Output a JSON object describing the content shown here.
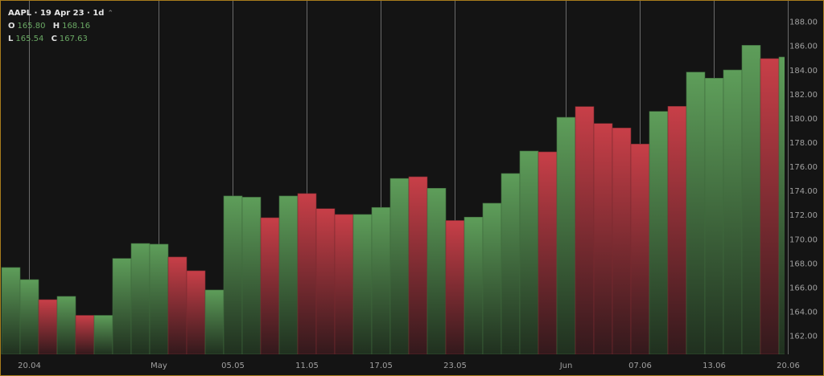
{
  "legend": {
    "title": "AAPL · 19 Apr 23 · 1d",
    "collapse_icon": "chevron-up-icon",
    "o_label": "O",
    "o_value": "165.80",
    "h_label": "H",
    "h_value": "168.16",
    "l_label": "L",
    "l_value": "165.54",
    "c_label": "C",
    "c_value": "167.63"
  },
  "colors": {
    "up": "#5e9e5a",
    "down": "#c83f48",
    "border": "#a87c1c",
    "background": "#141414",
    "grid": "#6a6a6a",
    "axis_text": "#a0a0a0"
  },
  "chart_data": {
    "type": "bar",
    "title": "AAPL · 19 Apr 23 · 1d",
    "xlabel": "",
    "ylabel": "",
    "ylim": [
      161,
      189
    ],
    "yticks": [
      "162.00",
      "164.00",
      "166.00",
      "168.00",
      "170.00",
      "172.00",
      "174.00",
      "176.00",
      "178.00",
      "180.00",
      "182.00",
      "184.00",
      "186.00",
      "188.00"
    ],
    "xticks": [
      {
        "label": "20.04",
        "date": "2023-04-20"
      },
      {
        "label": "May",
        "date": "2023-05-01"
      },
      {
        "label": "05.05",
        "date": "2023-05-05"
      },
      {
        "label": "11.05",
        "date": "2023-05-11"
      },
      {
        "label": "17.05",
        "date": "2023-05-17"
      },
      {
        "label": "23.05",
        "date": "2023-05-23"
      },
      {
        "label": "Jun",
        "date": "2023-06-01"
      },
      {
        "label": "07.06",
        "date": "2023-06-07"
      },
      {
        "label": "13.06",
        "date": "2023-06-13"
      },
      {
        "label": "20.06",
        "date": "2023-06-20"
      }
    ],
    "grid": "vertical lines at x ticks",
    "bars": [
      {
        "date": "2023-04-19",
        "close": 167.63,
        "dir": "up"
      },
      {
        "date": "2023-04-20",
        "close": 166.63,
        "dir": "up"
      },
      {
        "date": "2023-04-21",
        "close": 164.97,
        "dir": "down"
      },
      {
        "date": "2023-04-24",
        "close": 165.24,
        "dir": "up"
      },
      {
        "date": "2023-04-25",
        "close": 163.67,
        "dir": "down"
      },
      {
        "date": "2023-04-26",
        "close": 163.67,
        "dir": "up"
      },
      {
        "date": "2023-04-27",
        "close": 168.38,
        "dir": "up"
      },
      {
        "date": "2023-04-28",
        "close": 169.62,
        "dir": "up"
      },
      {
        "date": "2023-05-01",
        "close": 169.56,
        "dir": "up"
      },
      {
        "date": "2023-05-02",
        "close": 168.5,
        "dir": "down"
      },
      {
        "date": "2023-05-03",
        "close": 167.36,
        "dir": "down"
      },
      {
        "date": "2023-05-04",
        "close": 165.77,
        "dir": "up"
      },
      {
        "date": "2023-05-05",
        "close": 173.55,
        "dir": "up"
      },
      {
        "date": "2023-05-08",
        "close": 173.45,
        "dir": "up"
      },
      {
        "date": "2023-05-09",
        "close": 171.75,
        "dir": "down"
      },
      {
        "date": "2023-05-10",
        "close": 173.55,
        "dir": "up"
      },
      {
        "date": "2023-05-11",
        "close": 173.75,
        "dir": "down"
      },
      {
        "date": "2023-05-12",
        "close": 172.5,
        "dir": "down"
      },
      {
        "date": "2023-05-15",
        "close": 172.02,
        "dir": "down"
      },
      {
        "date": "2023-05-16",
        "close": 172.02,
        "dir": "up"
      },
      {
        "date": "2023-05-17",
        "close": 172.6,
        "dir": "up"
      },
      {
        "date": "2023-05-18",
        "close": 175.0,
        "dir": "up"
      },
      {
        "date": "2023-05-19",
        "close": 175.14,
        "dir": "down"
      },
      {
        "date": "2023-05-22",
        "close": 174.19,
        "dir": "up"
      },
      {
        "date": "2023-05-23",
        "close": 171.52,
        "dir": "down"
      },
      {
        "date": "2023-05-24",
        "close": 171.8,
        "dir": "up"
      },
      {
        "date": "2023-05-25",
        "close": 172.95,
        "dir": "up"
      },
      {
        "date": "2023-05-26",
        "close": 175.41,
        "dir": "up"
      },
      {
        "date": "2023-05-30",
        "close": 177.27,
        "dir": "up"
      },
      {
        "date": "2023-05-31",
        "close": 177.2,
        "dir": "down"
      },
      {
        "date": "2023-06-01",
        "close": 180.06,
        "dir": "up"
      },
      {
        "date": "2023-06-02",
        "close": 180.95,
        "dir": "down"
      },
      {
        "date": "2023-06-05",
        "close": 179.55,
        "dir": "down"
      },
      {
        "date": "2023-06-06",
        "close": 179.18,
        "dir": "down"
      },
      {
        "date": "2023-06-07",
        "close": 177.85,
        "dir": "down"
      },
      {
        "date": "2023-06-08",
        "close": 180.55,
        "dir": "up"
      },
      {
        "date": "2023-06-09",
        "close": 180.97,
        "dir": "down"
      },
      {
        "date": "2023-06-12",
        "close": 183.8,
        "dir": "up"
      },
      {
        "date": "2023-06-13",
        "close": 183.3,
        "dir": "up"
      },
      {
        "date": "2023-06-14",
        "close": 183.98,
        "dir": "up"
      },
      {
        "date": "2023-06-15",
        "close": 186.02,
        "dir": "up"
      },
      {
        "date": "2023-06-16",
        "close": 184.92,
        "dir": "down"
      },
      {
        "date": "2023-06-20",
        "close": 185.05,
        "dir": "up"
      }
    ]
  }
}
